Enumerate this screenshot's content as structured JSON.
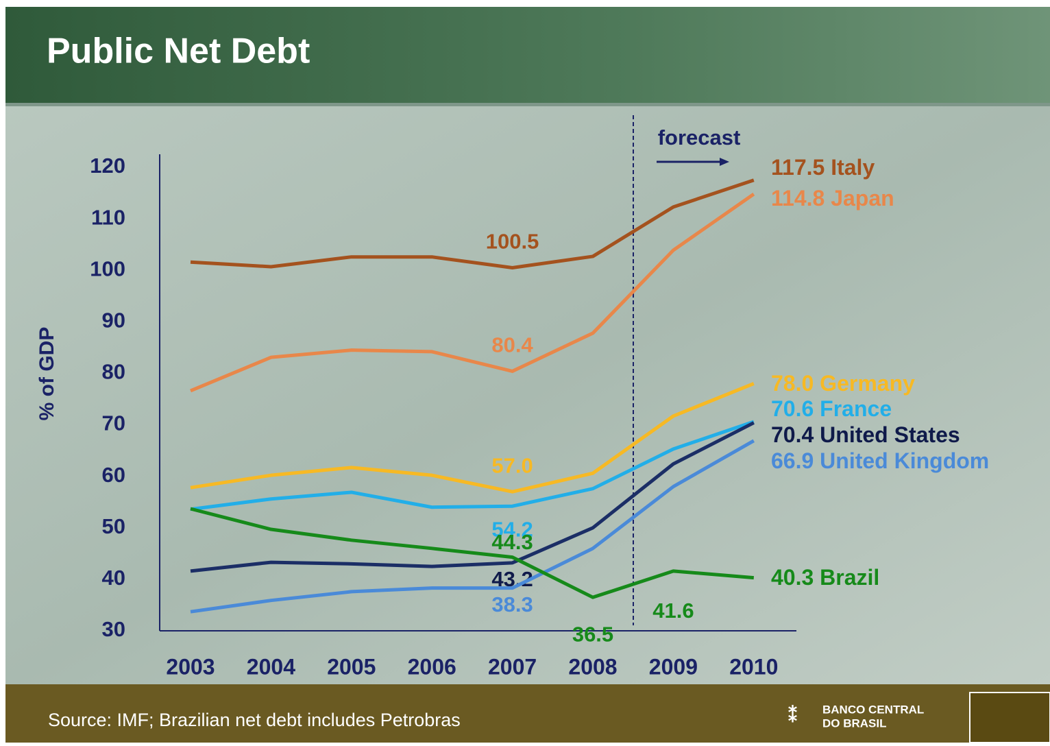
{
  "chart_data": {
    "type": "line",
    "title": "Public Net Debt",
    "y_label": "% of GDP",
    "annotation": "forecast",
    "source": "Source: IMF; Brazilian net debt includes Petrobras",
    "logo": [
      "BANCO CENTRAL",
      "DO BRASIL"
    ],
    "categories": [
      "2003",
      "2004",
      "2005",
      "2006",
      "2007",
      "2008",
      "2009",
      "2010"
    ],
    "ylim": [
      30,
      120
    ],
    "yticks": [
      30,
      40,
      50,
      60,
      70,
      80,
      90,
      100,
      110,
      120
    ],
    "series": [
      {
        "name": "Italy",
        "color": "#a4521e",
        "values": [
          101.6,
          100.7,
          102.6,
          102.6,
          100.5,
          102.7,
          112.3,
          117.5
        ],
        "value_labels": [
          null,
          null,
          null,
          null,
          "100.5",
          null,
          null,
          "117.5"
        ]
      },
      {
        "name": "Japan",
        "color": "#e8874a",
        "values": [
          76.6,
          83.1,
          84.5,
          84.2,
          80.4,
          87.8,
          103.9,
          114.8
        ],
        "value_labels": [
          null,
          null,
          null,
          null,
          "80.4",
          null,
          null,
          "114.8"
        ]
      },
      {
        "name": "Germany",
        "color": "#f7b924",
        "values": [
          57.8,
          60.2,
          61.7,
          60.2,
          57.0,
          60.6,
          71.7,
          78.0
        ],
        "value_labels": [
          null,
          null,
          null,
          null,
          "57.0",
          null,
          null,
          "78.0"
        ]
      },
      {
        "name": "France",
        "color": "#22aee8",
        "values": [
          53.6,
          55.6,
          56.9,
          54.0,
          54.2,
          57.6,
          65.3,
          70.6
        ],
        "value_labels": [
          null,
          null,
          null,
          null,
          "54.2",
          null,
          null,
          "70.6"
        ]
      },
      {
        "name": "United States",
        "color": "#1b2e66",
        "values": [
          41.6,
          43.3,
          43.0,
          42.5,
          43.2,
          50.0,
          62.4,
          70.4
        ],
        "value_labels": [
          null,
          null,
          null,
          null,
          "43.2",
          null,
          null,
          "70.4"
        ]
      },
      {
        "name": "United Kingdom",
        "color": "#4a8ad8",
        "values": [
          33.7,
          35.9,
          37.6,
          38.3,
          38.3,
          46.0,
          58.0,
          66.9
        ],
        "value_labels": [
          null,
          null,
          null,
          null,
          "38.3",
          null,
          null,
          "66.9"
        ]
      },
      {
        "name": "Brazil",
        "color": "#168a1a",
        "values": [
          53.7,
          49.7,
          47.6,
          46.0,
          44.3,
          36.5,
          41.6,
          40.3
        ],
        "value_labels": [
          null,
          null,
          null,
          null,
          "44.3",
          "36.5",
          "41.6",
          "40.3"
        ]
      }
    ]
  }
}
